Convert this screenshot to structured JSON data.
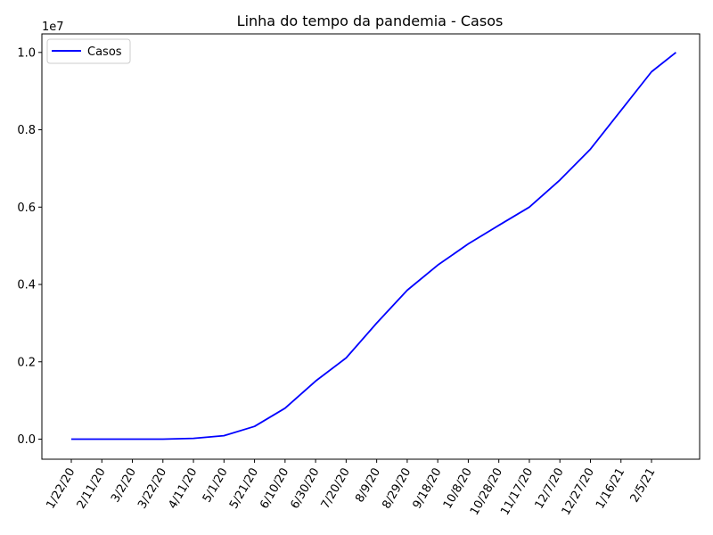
{
  "chart_data": {
    "type": "line",
    "title": "Linha do tempo da pandemia - Casos",
    "xlabel": "",
    "ylabel": "",
    "y_scale_label": "1e7",
    "ylim": [
      -0.04,
      1.05
    ],
    "y_multiplier": 10000000,
    "x_ticks": [
      "1/22/20",
      "2/11/20",
      "3/2/20",
      "3/22/20",
      "4/11/20",
      "5/1/20",
      "5/21/20",
      "6/10/20",
      "6/30/20",
      "7/20/20",
      "8/9/20",
      "8/29/20",
      "9/18/20",
      "10/8/20",
      "10/28/20",
      "11/17/20",
      "12/7/20",
      "12/27/20",
      "1/16/21",
      "2/5/21"
    ],
    "y_ticks": [
      "0.0",
      "0.2",
      "0.4",
      "0.6",
      "0.8",
      "1.0"
    ],
    "legend": {
      "position": "top-left",
      "entries": [
        "Casos"
      ]
    },
    "grid": false,
    "series": [
      {
        "name": "Casos",
        "color": "#0000ff",
        "x": [
          "1/22/20",
          "2/11/20",
          "3/2/20",
          "3/22/20",
          "4/11/20",
          "5/1/20",
          "5/21/20",
          "6/10/20",
          "6/30/20",
          "7/20/20",
          "8/9/20",
          "8/29/20",
          "9/18/20",
          "10/8/20",
          "10/28/20",
          "11/17/20",
          "12/7/20",
          "12/27/20",
          "1/16/21",
          "2/5/21",
          "2/21/21"
        ],
        "values": [
          0,
          0,
          1e-05,
          0.0001,
          0.002,
          0.009,
          0.033,
          0.08,
          0.15,
          0.21,
          0.3,
          0.385,
          0.45,
          0.505,
          0.553,
          0.6,
          0.67,
          0.75,
          0.85,
          0.95,
          1.0
        ]
      }
    ]
  }
}
